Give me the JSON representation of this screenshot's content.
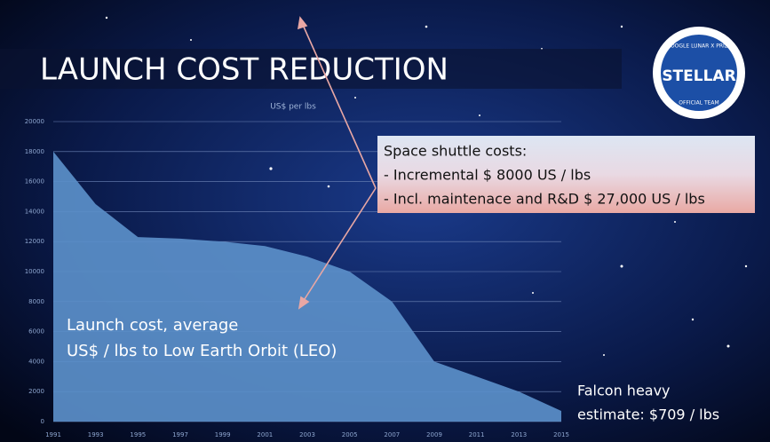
{
  "chart_data": {
    "type": "area",
    "title": "LAUNCH COST REDUCTION",
    "y_label": "US$ per lbs",
    "x": [
      1991,
      1993,
      1995,
      1997,
      1999,
      2001,
      2003,
      2005,
      2007,
      2009,
      2011,
      2013,
      2015
    ],
    "values": [
      18000,
      14500,
      12300,
      12200,
      12000,
      11700,
      11000,
      10000,
      8000,
      4000,
      3000,
      2000,
      709
    ],
    "color": "#5b8fc9",
    "xlim": [
      1991,
      2015
    ],
    "xticks": [
      1991,
      1993,
      1995,
      1997,
      1999,
      2001,
      2003,
      2005,
      2007,
      2009,
      2011,
      2013,
      2015
    ],
    "ylim": [
      0,
      20000
    ],
    "yticks": [
      0,
      2000,
      4000,
      6000,
      8000,
      10000,
      12000,
      14000,
      16000,
      18000,
      20000
    ],
    "grid": true,
    "annotations": {
      "shuttle": [
        "Space shuttle costs:",
        "- Incremental $ 8000 US / lbs",
        "- Incl. maintenace and R&D $ 27,000 US / lbs"
      ],
      "area_label": [
        "Launch cost, average",
        "US$ / lbs to Low Earth Orbit (LEO)"
      ],
      "falcon": [
        "Falcon heavy",
        "estimate: $709 / lbs"
      ]
    }
  },
  "logo": {
    "name": "STELLAR",
    "top": "GOOGLE LUNAR X PRIZE",
    "bottom": "OFFICIAL TEAM"
  }
}
